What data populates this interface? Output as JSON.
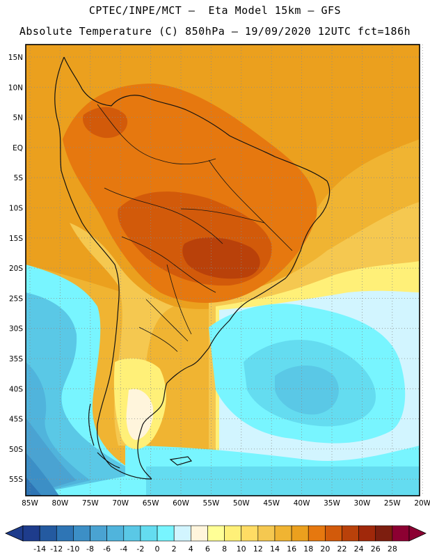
{
  "header": {
    "line1": "CPTEC/INPE/MCT –  Eta Model 15km – GFS",
    "line2": "Absolute Temperature (C) 850hPa – 19/09/2020 12UTC fct=186h"
  },
  "map": {
    "lat_labels": [
      "15N",
      "10N",
      "5N",
      "EQ",
      "5S",
      "10S",
      "15S",
      "20S",
      "25S",
      "30S",
      "35S",
      "40S",
      "45S",
      "50S",
      "55S"
    ],
    "lon_labels": [
      "85W",
      "80W",
      "75W",
      "70W",
      "65W",
      "60W",
      "55W",
      "50W",
      "45W",
      "40W",
      "35W",
      "30W",
      "25W",
      "20W"
    ]
  },
  "legend": {
    "ticks": [
      "-14",
      "-12",
      "-10",
      "-8",
      "-6",
      "-4",
      "-2",
      "0",
      "2",
      "4",
      "6",
      "8",
      "10",
      "12",
      "14",
      "16",
      "18",
      "20",
      "22",
      "24",
      "26",
      "28"
    ],
    "colors": [
      "#1e3c8c",
      "#245aa0",
      "#2e75b5",
      "#3c8fc6",
      "#4aa3d2",
      "#50b4dc",
      "#5ac8e6",
      "#64dcf0",
      "#78f5ff",
      "#d2f5ff",
      "#fff5dc",
      "#ffff96",
      "#fff078",
      "#ffdc64",
      "#f5c850",
      "#f0b432",
      "#eba01e",
      "#e6780f",
      "#d25a0a",
      "#b9410a",
      "#a0280a",
      "#7d1e0f",
      "#8c0032"
    ]
  }
}
